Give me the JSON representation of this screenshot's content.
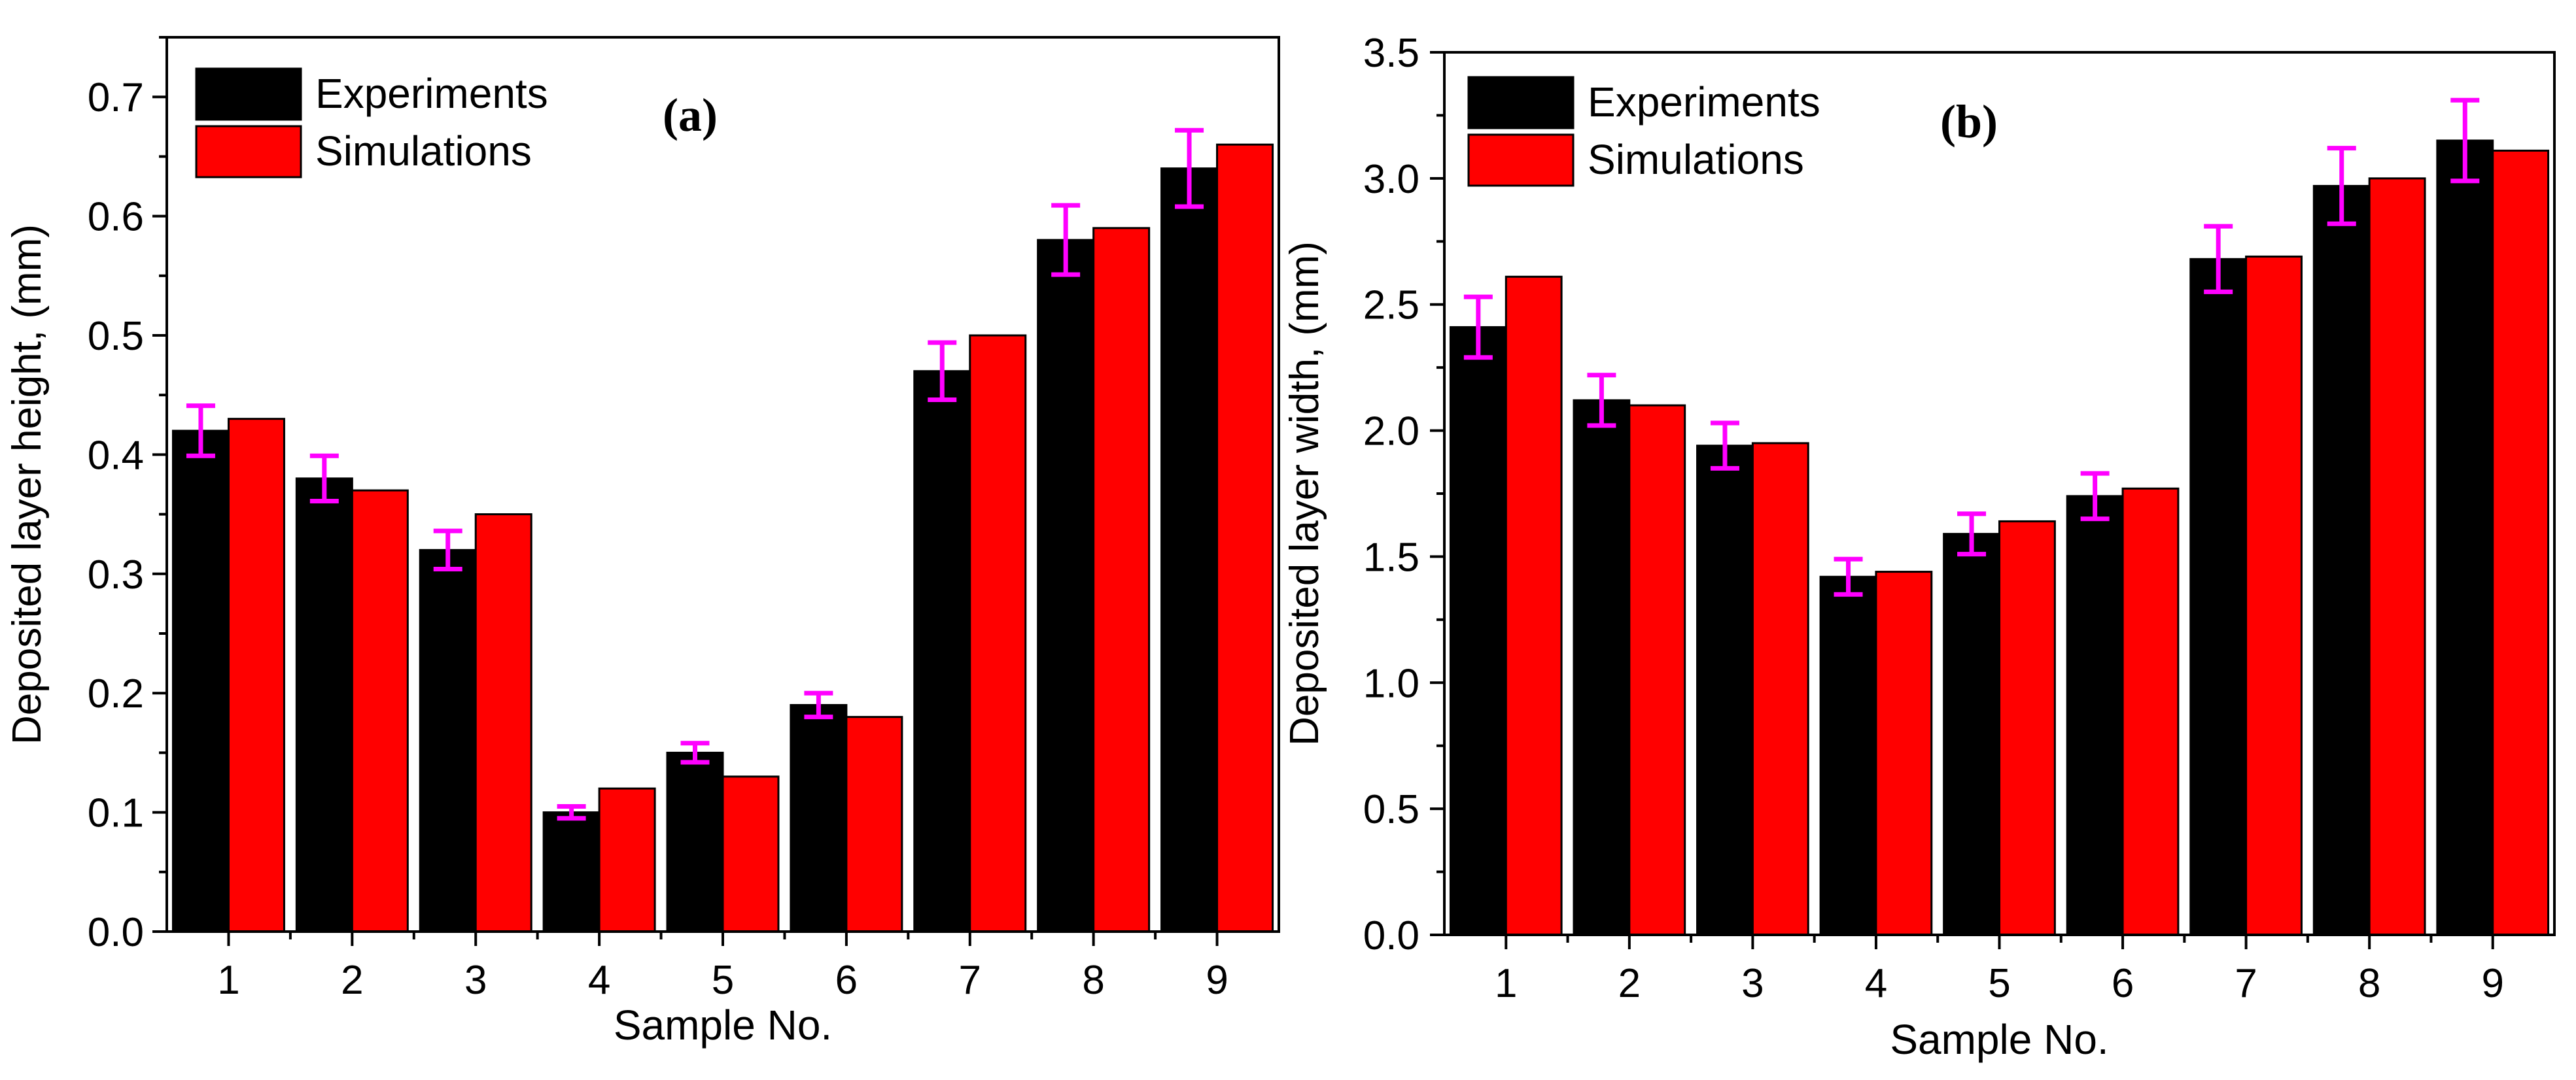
{
  "chart_data": [
    {
      "type": "bar",
      "panel_label": "(a)",
      "title": "",
      "xlabel": "Sample No.",
      "ylabel": "Deposited layer height, (mm)",
      "categories": [
        "1",
        "2",
        "3",
        "4",
        "5",
        "6",
        "7",
        "8",
        "9"
      ],
      "series": [
        {
          "name": "Experiments",
          "color": "#000000",
          "values": [
            0.42,
            0.38,
            0.32,
            0.1,
            0.15,
            0.19,
            0.47,
            0.58,
            0.64
          ],
          "error": [
            0.021,
            0.019,
            0.016,
            0.005,
            0.008,
            0.01,
            0.024,
            0.029,
            0.032
          ]
        },
        {
          "name": "Simulations",
          "color": "#ff0000",
          "values": [
            0.43,
            0.37,
            0.35,
            0.12,
            0.13,
            0.18,
            0.5,
            0.59,
            0.66
          ]
        }
      ],
      "error_bar_color": "#ff00ff",
      "ylim": [
        0,
        0.75
      ],
      "yticks": [
        0.0,
        0.1,
        0.2,
        0.3,
        0.4,
        0.5,
        0.6,
        0.7
      ],
      "ytick_labels": [
        "0.0",
        "0.1",
        "0.2",
        "0.3",
        "0.4",
        "0.5",
        "0.6",
        "0.7"
      ],
      "grid": false,
      "legend_position": "top-left"
    },
    {
      "type": "bar",
      "panel_label": "(b)",
      "title": "",
      "xlabel": "Sample No.",
      "ylabel": "Deposited layer width, (mm)",
      "categories": [
        "1",
        "2",
        "3",
        "4",
        "5",
        "6",
        "7",
        "8",
        "9"
      ],
      "series": [
        {
          "name": "Experiments",
          "color": "#000000",
          "values": [
            2.41,
            2.12,
            1.94,
            1.42,
            1.59,
            1.74,
            2.68,
            2.97,
            3.15
          ],
          "error": [
            0.12,
            0.1,
            0.09,
            0.07,
            0.08,
            0.09,
            0.13,
            0.15,
            0.16
          ]
        },
        {
          "name": "Simulations",
          "color": "#ff0000",
          "values": [
            2.61,
            2.1,
            1.95,
            1.44,
            1.64,
            1.77,
            2.69,
            3.0,
            3.11
          ]
        }
      ],
      "error_bar_color": "#ff00ff",
      "ylim": [
        0,
        3.5
      ],
      "yticks": [
        0.0,
        0.5,
        1.0,
        1.5,
        2.0,
        2.5,
        3.0,
        3.5
      ],
      "ytick_labels": [
        "0.0",
        "0.5",
        "1.0",
        "1.5",
        "2.0",
        "2.5",
        "3.0",
        "3.5"
      ],
      "grid": false,
      "legend_position": "top-left"
    }
  ]
}
